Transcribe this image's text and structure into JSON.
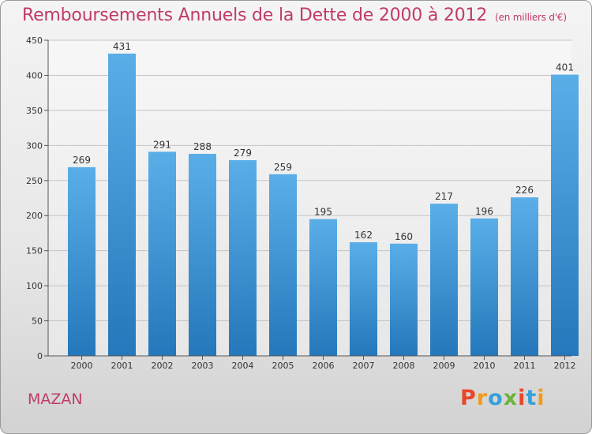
{
  "title": "Remboursements Annuels de la Dette de 2000 à 2012",
  "title_unit": "(en milliers d'€)",
  "place": "MAZAN",
  "logo": {
    "text": "Proxiti",
    "colors": [
      "#e8462a",
      "#f39a1e",
      "#35a0d9",
      "#6ab43d",
      "#e8462a",
      "#35a0d9",
      "#f39a1e"
    ]
  },
  "colors": {
    "title": "#c03a6b",
    "bar_top": "#5aaee8",
    "bar_bottom": "#2478bb"
  },
  "chart_data": {
    "type": "bar",
    "categories": [
      "2000",
      "2001",
      "2002",
      "2003",
      "2004",
      "2005",
      "2006",
      "2007",
      "2008",
      "2009",
      "2010",
      "2011",
      "2012"
    ],
    "values": [
      269,
      431,
      291,
      288,
      279,
      259,
      195,
      162,
      160,
      217,
      196,
      226,
      401
    ],
    "data_labels": [
      "269",
      "431",
      "291",
      "288",
      "279",
      "259",
      "195",
      "162",
      "160",
      "217",
      "196",
      "226",
      "401"
    ],
    "ylim": [
      0,
      450
    ],
    "yticks": [
      0,
      50,
      100,
      150,
      200,
      250,
      300,
      350,
      400,
      450
    ],
    "grid": true,
    "xlabel": "",
    "ylabel": ""
  }
}
